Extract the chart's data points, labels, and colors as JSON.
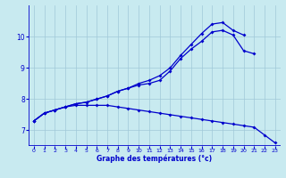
{
  "title": "",
  "xlabel": "Graphe des températures (°c)",
  "ylabel": "",
  "bg_color": "#c8eaf0",
  "grid_color": "#a0c8d8",
  "line_color": "#0000cc",
  "hours": [
    0,
    1,
    2,
    3,
    4,
    5,
    6,
    7,
    8,
    9,
    10,
    11,
    12,
    13,
    14,
    15,
    16,
    17,
    18,
    19,
    20,
    21,
    22,
    23
  ],
  "series1": [
    7.3,
    7.55,
    7.65,
    7.75,
    7.85,
    7.9,
    8.0,
    8.1,
    8.25,
    8.35,
    8.45,
    8.5,
    8.6,
    8.9,
    9.3,
    9.6,
    9.85,
    10.15,
    10.2,
    10.05,
    9.55,
    9.45,
    null,
    null
  ],
  "series2": [
    7.3,
    7.55,
    7.65,
    7.75,
    7.85,
    7.9,
    8.0,
    8.1,
    8.25,
    8.35,
    8.5,
    8.6,
    8.75,
    9.0,
    9.4,
    9.75,
    10.1,
    10.4,
    10.45,
    10.2,
    10.05,
    null,
    null,
    null
  ],
  "series3": [
    7.3,
    7.55,
    7.65,
    7.75,
    7.8,
    7.8,
    7.8,
    7.8,
    7.75,
    7.7,
    7.65,
    7.6,
    7.55,
    7.5,
    7.45,
    7.4,
    7.35,
    7.3,
    7.25,
    7.2,
    7.15,
    7.1,
    6.85,
    6.6
  ],
  "ylim": [
    6.5,
    11.0
  ],
  "yticks": [
    7,
    8,
    9,
    10
  ],
  "xticks": [
    0,
    1,
    2,
    3,
    4,
    5,
    6,
    7,
    8,
    9,
    10,
    11,
    12,
    13,
    14,
    15,
    16,
    17,
    18,
    19,
    20,
    21,
    22,
    23
  ]
}
